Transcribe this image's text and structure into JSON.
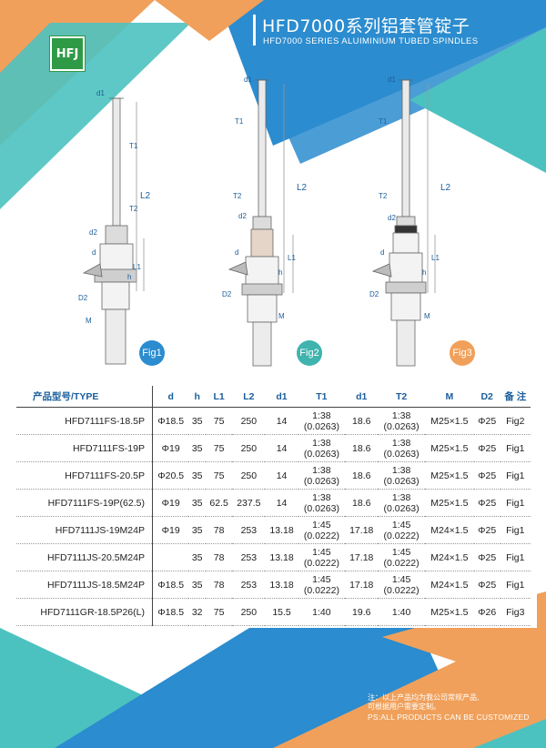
{
  "brand": {
    "logo_text": "HFJ"
  },
  "header": {
    "title": "HFD7000系列铝套管锭子",
    "subtitle": "HFD7000  SERIES ALUIMINIUM TUBED SPINDLES"
  },
  "figures": {
    "fig1": {
      "label": "Fig1",
      "color": "#2b8ccf"
    },
    "fig2": {
      "label": "Fig2",
      "color": "#3fb3ad"
    },
    "fig3": {
      "label": "Fig3",
      "color": "#f0a05a"
    },
    "dims": {
      "d1": "d1",
      "T1": "T1",
      "T2": "T2",
      "L2": "L2",
      "d2": "d2",
      "d": "d",
      "L1": "L1",
      "h": "h",
      "D2": "D2",
      "M": "M"
    }
  },
  "table": {
    "headers": [
      "产品型号/TYPE",
      "d",
      "h",
      "L1",
      "L2",
      "d1",
      "T1",
      "d1",
      "T2",
      "M",
      "D2",
      "备 注"
    ],
    "rows": [
      [
        "HFD7111FS-18.5P",
        "Φ18.5",
        "35",
        "75",
        "250",
        "14",
        "1:38\n(0.0263)",
        "18.6",
        "1:38\n(0.0263)",
        "M25×1.5",
        "Φ25",
        "Fig2"
      ],
      [
        "HFD7111FS-19P",
        "Φ19",
        "35",
        "75",
        "250",
        "14",
        "1:38\n(0.0263)",
        "18.6",
        "1:38\n(0.0263)",
        "M25×1.5",
        "Φ25",
        "Fig1"
      ],
      [
        "HFD7111FS-20.5P",
        "Φ20.5",
        "35",
        "75",
        "250",
        "14",
        "1:38\n(0.0263)",
        "18.6",
        "1:38\n(0.0263)",
        "M25×1.5",
        "Φ25",
        "Fig1"
      ],
      [
        "HFD7111FS-19P(62.5)",
        "Φ19",
        "35",
        "62.5",
        "237.5",
        "14",
        "1:38\n(0.0263)",
        "18.6",
        "1:38\n(0.0263)",
        "M25×1.5",
        "Φ25",
        "Fig1"
      ],
      [
        "HFD7111JS-19M24P",
        "Φ19",
        "35",
        "78",
        "253",
        "13.18",
        "1:45\n(0.0222)",
        "17.18",
        "1:45\n(0.0222)",
        "M24×1.5",
        "Φ25",
        "Fig1"
      ],
      [
        "HFD7111JS-20.5M24P",
        "",
        "35",
        "78",
        "253",
        "13.18",
        "1:45\n(0.0222)",
        "17.18",
        "1:45\n(0.0222)",
        "M24×1.5",
        "Φ25",
        "Fig1"
      ],
      [
        "HFD7111JS-18.5M24P",
        "Φ18.5",
        "35",
        "78",
        "253",
        "13.18",
        "1:45\n(0.0222)",
        "17.18",
        "1:45\n(0.0222)",
        "M24×1.5",
        "Φ25",
        "Fig1"
      ],
      [
        "HFD7111GR-18.5P26(L)",
        "Φ18.5",
        "32",
        "75",
        "250",
        "15.5",
        "1:40",
        "19.6",
        "1:40",
        "M25×1.5",
        "Φ26",
        "Fig3"
      ]
    ]
  },
  "footer": {
    "note_cn_1": "注：以上产品均为我公司常规产品,",
    "note_cn_2": "可根据用户需要定制。",
    "note_en": "PS:ALL PRODUCTS CAN BE CUSTOMIZED"
  },
  "colors": {
    "blue": "#2b8ccf",
    "teal": "#4cc2c0",
    "orange": "#f0a05a",
    "green": "#2f9a46"
  }
}
